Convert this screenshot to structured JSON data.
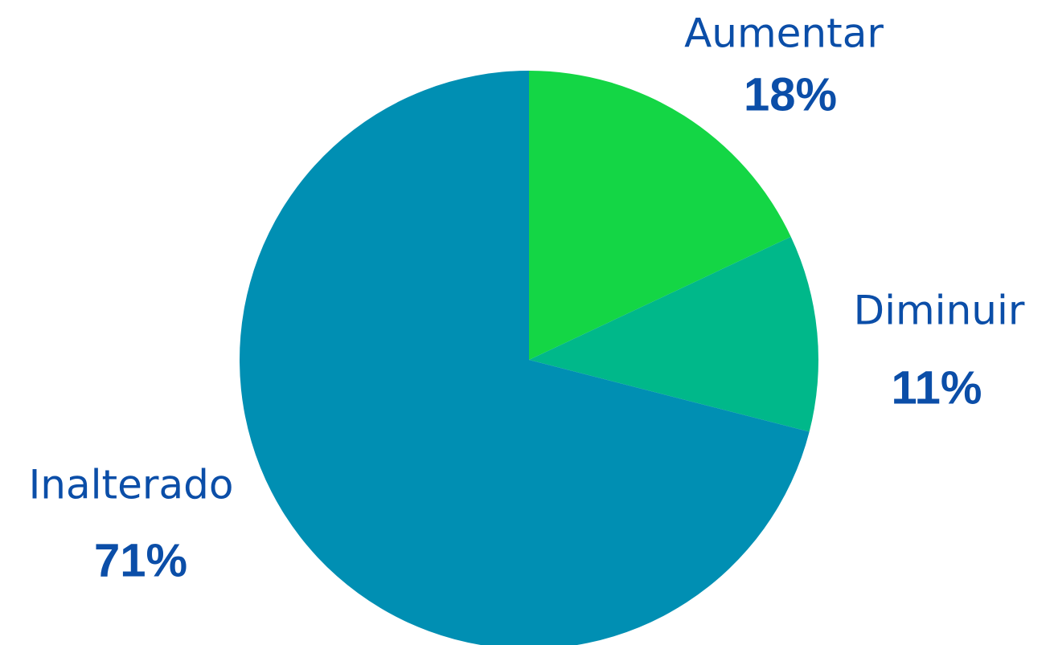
{
  "chart_data": {
    "type": "pie",
    "categories": [
      "Aumentar",
      "Diminuir",
      "Inalterado"
    ],
    "values": [
      18,
      11,
      71
    ],
    "value_labels": [
      "18%",
      "11%",
      "71%"
    ],
    "colors": [
      "#14d645",
      "#00b88a",
      "#008fb3"
    ],
    "start_angle": "top",
    "direction": "clockwise"
  }
}
